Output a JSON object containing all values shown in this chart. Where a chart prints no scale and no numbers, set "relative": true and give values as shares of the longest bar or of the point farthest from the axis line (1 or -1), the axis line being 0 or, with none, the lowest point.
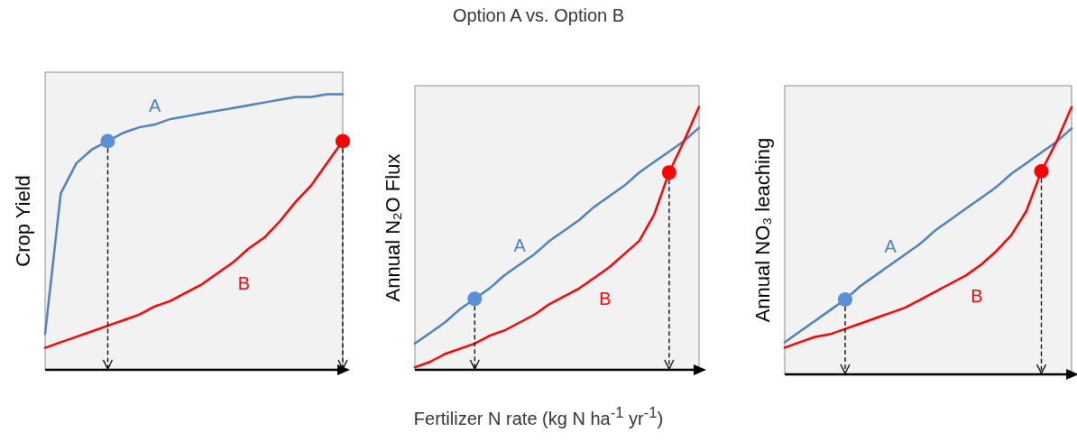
{
  "chart_data": [
    {
      "type": "line",
      "relative": true,
      "ylabel": "Crop Yield",
      "categories": [
        null,
        null,
        null,
        null,
        null,
        null,
        null,
        null,
        null,
        null,
        null,
        null,
        null,
        null,
        null,
        null,
        null,
        null,
        null,
        null
      ],
      "series": [
        {
          "name": "A",
          "color": "#4f81bd",
          "marker": "none",
          "values": [
            0.13,
            0.64,
            0.75,
            0.8,
            0.83,
            0.86,
            0.88,
            0.89,
            0.91,
            0.92,
            0.93,
            0.94,
            0.95,
            0.96,
            0.97,
            0.98,
            0.99,
            0.99,
            1.0,
            1.0
          ]
        },
        {
          "name": "B",
          "color": "#ff0000",
          "marker": "none",
          "values": [
            0.08,
            0.1,
            0.12,
            0.14,
            0.16,
            0.18,
            0.2,
            0.23,
            0.25,
            0.28,
            0.31,
            0.35,
            0.39,
            0.44,
            0.48,
            0.54,
            0.61,
            0.67,
            0.75,
            0.83
          ]
        },
        {
          "color": "#5b8fd6",
          "marker": "circle",
          "values": [
            null,
            null,
            null,
            null,
            0.83,
            null,
            null,
            null,
            null,
            null,
            null,
            null,
            null,
            null,
            null,
            null,
            null,
            null,
            null,
            null
          ]
        },
        {
          "color": "#ff0000",
          "marker": "circle",
          "values": [
            null,
            null,
            null,
            null,
            null,
            null,
            null,
            null,
            null,
            null,
            null,
            null,
            null,
            null,
            null,
            null,
            null,
            null,
            null,
            0.83
          ]
        }
      ]
    },
    {
      "type": "line",
      "relative": true,
      "title": "Option A vs. Option B",
      "xlabel": "Fertilizer N rate (kg N ha$^{-1}$ yr$^{-1}$)",
      "ylabel": "Annual N₂O Flux",
      "categories": [
        null,
        null,
        null,
        null,
        null,
        null,
        null,
        null,
        null,
        null,
        null,
        null,
        null,
        null,
        null,
        null,
        null,
        null,
        null,
        null
      ],
      "series": [
        {
          "name": "A",
          "color": "#4f81bd",
          "marker": "none",
          "values": [
            0.1,
            0.14,
            0.18,
            0.23,
            0.27,
            0.31,
            0.36,
            0.4,
            0.44,
            0.49,
            0.53,
            0.57,
            0.62,
            0.66,
            0.7,
            0.75,
            0.79,
            0.83,
            0.87,
            0.92
          ]
        },
        {
          "name": "B",
          "color": "#ff0000",
          "marker": "none",
          "values": [
            0.01,
            0.03,
            0.06,
            0.08,
            0.1,
            0.13,
            0.15,
            0.18,
            0.21,
            0.25,
            0.28,
            0.31,
            0.35,
            0.39,
            0.44,
            0.49,
            0.59,
            0.75,
            0.87,
            1.0
          ]
        },
        {
          "color": "#5b8fd6",
          "marker": "circle",
          "values": [
            null,
            null,
            null,
            null,
            0.27,
            null,
            null,
            null,
            null,
            null,
            null,
            null,
            null,
            null,
            null,
            null,
            null,
            null,
            null,
            null
          ]
        },
        {
          "color": "#ff0000",
          "marker": "circle",
          "values": [
            null,
            null,
            null,
            null,
            null,
            null,
            null,
            null,
            null,
            null,
            null,
            null,
            null,
            null,
            null,
            null,
            null,
            0.75,
            null,
            null
          ]
        }
      ]
    },
    {
      "type": "line",
      "relative": true,
      "ylabel": "Annual NO₃ leaching",
      "categories": [
        null,
        null,
        null,
        null,
        null,
        null,
        null,
        null,
        null,
        null,
        null,
        null,
        null,
        null,
        null,
        null,
        null,
        null,
        null,
        null
      ],
      "series": [
        {
          "name": "A",
          "color": "#4f81bd",
          "marker": "none",
          "values": [
            0.12,
            0.16,
            0.2,
            0.24,
            0.28,
            0.33,
            0.37,
            0.41,
            0.45,
            0.49,
            0.54,
            0.58,
            0.62,
            0.66,
            0.7,
            0.75,
            0.79,
            0.83,
            0.87,
            0.92
          ]
        },
        {
          "name": "B",
          "color": "#ff0000",
          "marker": "none",
          "values": [
            0.1,
            0.12,
            0.14,
            0.15,
            0.17,
            0.19,
            0.21,
            0.23,
            0.25,
            0.28,
            0.31,
            0.34,
            0.37,
            0.41,
            0.46,
            0.52,
            0.61,
            0.76,
            0.87,
            1.0
          ]
        },
        {
          "color": "#5b8fd6",
          "marker": "circle",
          "values": [
            null,
            null,
            null,
            null,
            0.28,
            null,
            null,
            null,
            null,
            null,
            null,
            null,
            null,
            null,
            null,
            null,
            null,
            null,
            null,
            null
          ]
        },
        {
          "color": "#ff0000",
          "marker": "circle",
          "values": [
            null,
            null,
            null,
            null,
            null,
            null,
            null,
            null,
            null,
            null,
            null,
            null,
            null,
            null,
            null,
            null,
            null,
            0.76,
            null,
            null
          ]
        }
      ]
    }
  ]
}
